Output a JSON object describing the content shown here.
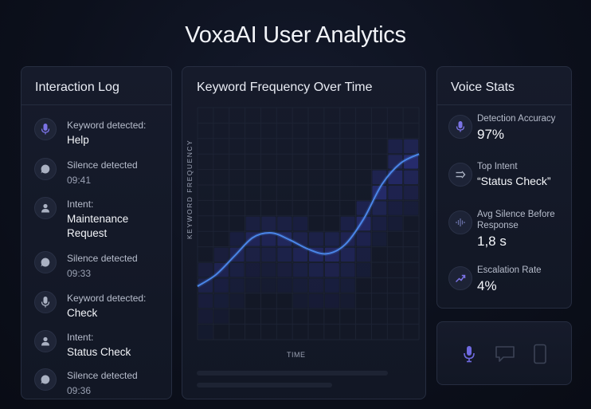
{
  "title": "VoxaAI User Analytics",
  "log": {
    "title": "Interaction Log",
    "items": [
      {
        "icon": "microphone-icon",
        "label": "Keyword detected:",
        "value": "Help",
        "time": ""
      },
      {
        "icon": "chat-bubble-icon",
        "label": "Silence detected",
        "value": "",
        "time": "09:41"
      },
      {
        "icon": "user-icon",
        "label": "Intent:",
        "value": "Maintenance Request",
        "time": ""
      },
      {
        "icon": "chat-bubble-icon",
        "label": "Silence detected",
        "value": "",
        "time": "09:33"
      },
      {
        "icon": "microphone-icon",
        "label": "Keyword detected:",
        "value": "Check",
        "time": ""
      },
      {
        "icon": "user-icon",
        "label": "Intent:",
        "value": "Status Check",
        "time": ""
      },
      {
        "icon": "chat-bubble-icon",
        "label": "Silence detected",
        "value": "",
        "time": "09:36"
      }
    ]
  },
  "chart": {
    "title": "Keyword Frequency Over Time",
    "ylabel": "KEYWORD FREQUENCY",
    "xlabel": "TIME"
  },
  "chart_data": {
    "type": "line",
    "title": "Keyword Frequency Over Time",
    "xlabel": "TIME",
    "ylabel": "KEYWORD FREQUENCY",
    "x": [
      0,
      1,
      2,
      3,
      4,
      5,
      6,
      7,
      8,
      9,
      10,
      11,
      12
    ],
    "series": [
      {
        "values": [
          2.3,
          2.8,
          3.6,
          4.4,
          4.6,
          4.3,
          3.9,
          3.7,
          4.1,
          5.2,
          6.7,
          7.6,
          8.0
        ]
      }
    ],
    "grid": true,
    "heatmap_background": true,
    "accent_color": "#4a86e8"
  },
  "stats": {
    "title": "Voice Stats",
    "items": [
      {
        "icon": "microphone-icon",
        "label": "Detection Accuracy",
        "value": "97%"
      },
      {
        "icon": "intent-icon",
        "label": "Top Intent",
        "value": "“Status Check”"
      },
      {
        "icon": "waveform-icon",
        "label": "Avg Silence Before Response",
        "value": "1,8 s"
      },
      {
        "icon": "trend-up-icon",
        "label": "Escalation Rate",
        "value": "4%"
      }
    ]
  },
  "controls": {
    "items": [
      "microphone-icon",
      "chat-icon",
      "phone-icon"
    ]
  },
  "colors": {
    "accent": "#4a86e8",
    "icon_purple": "#7b73e6",
    "background": "#0c101c",
    "panel": "#131826"
  }
}
